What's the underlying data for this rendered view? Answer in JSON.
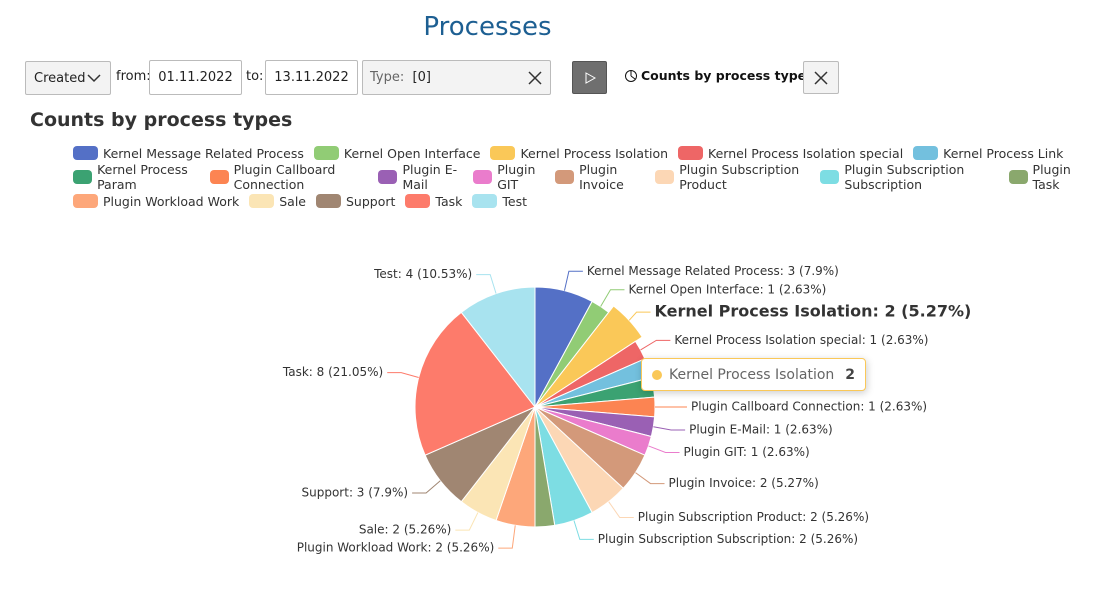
{
  "header": {
    "title": "Processes"
  },
  "filters": {
    "date_field": "Created",
    "from_label": "from:",
    "from": "01.11.2022",
    "to_label": "to:",
    "to": "13.11.2022",
    "type_label": "Type:",
    "type_value": "[0]",
    "report": "Counts by process types"
  },
  "tooltip": {
    "name": "Kernel Process Isolation",
    "value": 2
  },
  "chart_data": {
    "type": "pie",
    "title": "Counts by process types",
    "categories": [
      "Kernel Message Related Process",
      "Kernel Open Interface",
      "Kernel Process Isolation",
      "Kernel Process Isolation special",
      "Kernel Process Link",
      "Kernel Process Param",
      "Plugin Callboard Connection",
      "Plugin E-Mail",
      "Plugin GIT",
      "Plugin Invoice",
      "Plugin Subscription Product",
      "Plugin Subscription Subscription",
      "Plugin Task",
      "Plugin Workload Work",
      "Sale",
      "Support",
      "Task",
      "Test"
    ],
    "values": [
      3,
      1,
      2,
      1,
      1,
      1,
      1,
      1,
      1,
      2,
      2,
      2,
      1,
      2,
      2,
      3,
      8,
      4
    ],
    "value_labels": [
      "Kernel Message Related Process: 3 (7.9%)",
      "Kernel Open Interface: 1 (2.63%)",
      "Kernel Process Isolation: 2 (5.27%)",
      "Kernel Process Isolation special: 1 (2.63%)",
      null,
      null,
      "Plugin Callboard Connection: 1 (2.63%)",
      "Plugin E-Mail: 1 (2.63%)",
      "Plugin GIT: 1 (2.63%)",
      "Plugin Invoice: 2 (5.27%)",
      "Plugin Subscription Product: 2 (5.26%)",
      "Plugin Subscription Subscription: 2 (5.26%)",
      null,
      "Plugin Workload Work: 2 (5.26%)",
      "Sale: 2 (5.26%)",
      "Support: 3 (7.9%)",
      "Task: 8 (21.05%)",
      "Test: 4 (10.53%)"
    ],
    "colors": [
      "#5470c6",
      "#91cc75",
      "#fac858",
      "#ee6666",
      "#73c0de",
      "#3ba272",
      "#fc8452",
      "#9a60b4",
      "#ea7ccc",
      "#d3997a",
      "#fcd7b5",
      "#7ddde3",
      "#8aa86d",
      "#fda77a",
      "#fbe5b5",
      "#a08672",
      "#fd7b6b",
      "#a8e3ef"
    ]
  }
}
